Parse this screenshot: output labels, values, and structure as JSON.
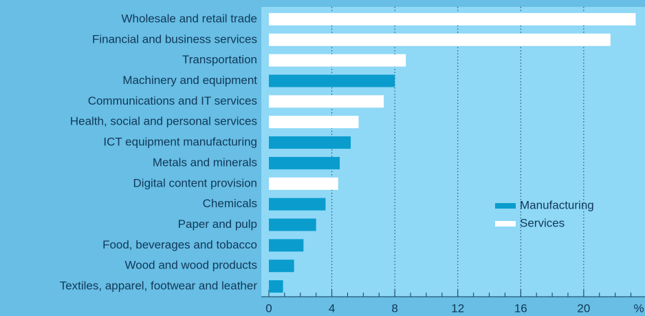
{
  "chart_data": {
    "type": "bar",
    "orientation": "horizontal",
    "categories": [
      "Wholesale and retail trade",
      "Financial and business services",
      "Transportation",
      "Machinery and equipment",
      "Communications and IT services",
      "Health, social and personal services",
      "ICT equipment manufacturing",
      "Metals and minerals",
      "Digital content provision",
      "Chemicals",
      "Paper and pulp",
      "Food, beverages and tobacco",
      "Wood and wood products",
      "Textiles, apparel, footwear and leather"
    ],
    "series": [
      {
        "name": "Manufacturing",
        "color": "#0a9ccd",
        "values": [
          null,
          null,
          null,
          8.0,
          null,
          null,
          5.2,
          4.5,
          null,
          3.6,
          3.0,
          2.2,
          1.6,
          0.9
        ]
      },
      {
        "name": "Services",
        "color": "#ffffff",
        "values": [
          23.3,
          21.7,
          8.7,
          null,
          7.3,
          5.7,
          null,
          null,
          4.4,
          null,
          null,
          null,
          null,
          null
        ]
      }
    ],
    "xlabel": "%",
    "xlim": [
      0,
      23.5
    ],
    "xticks": [
      0,
      4,
      8,
      12,
      16,
      20
    ],
    "xminor_ticks": [
      1,
      2,
      3,
      5,
      6,
      7,
      9,
      10,
      11,
      13,
      14,
      15,
      17,
      18,
      19,
      21,
      22,
      23
    ],
    "grid": true,
    "legend": "center right"
  }
}
